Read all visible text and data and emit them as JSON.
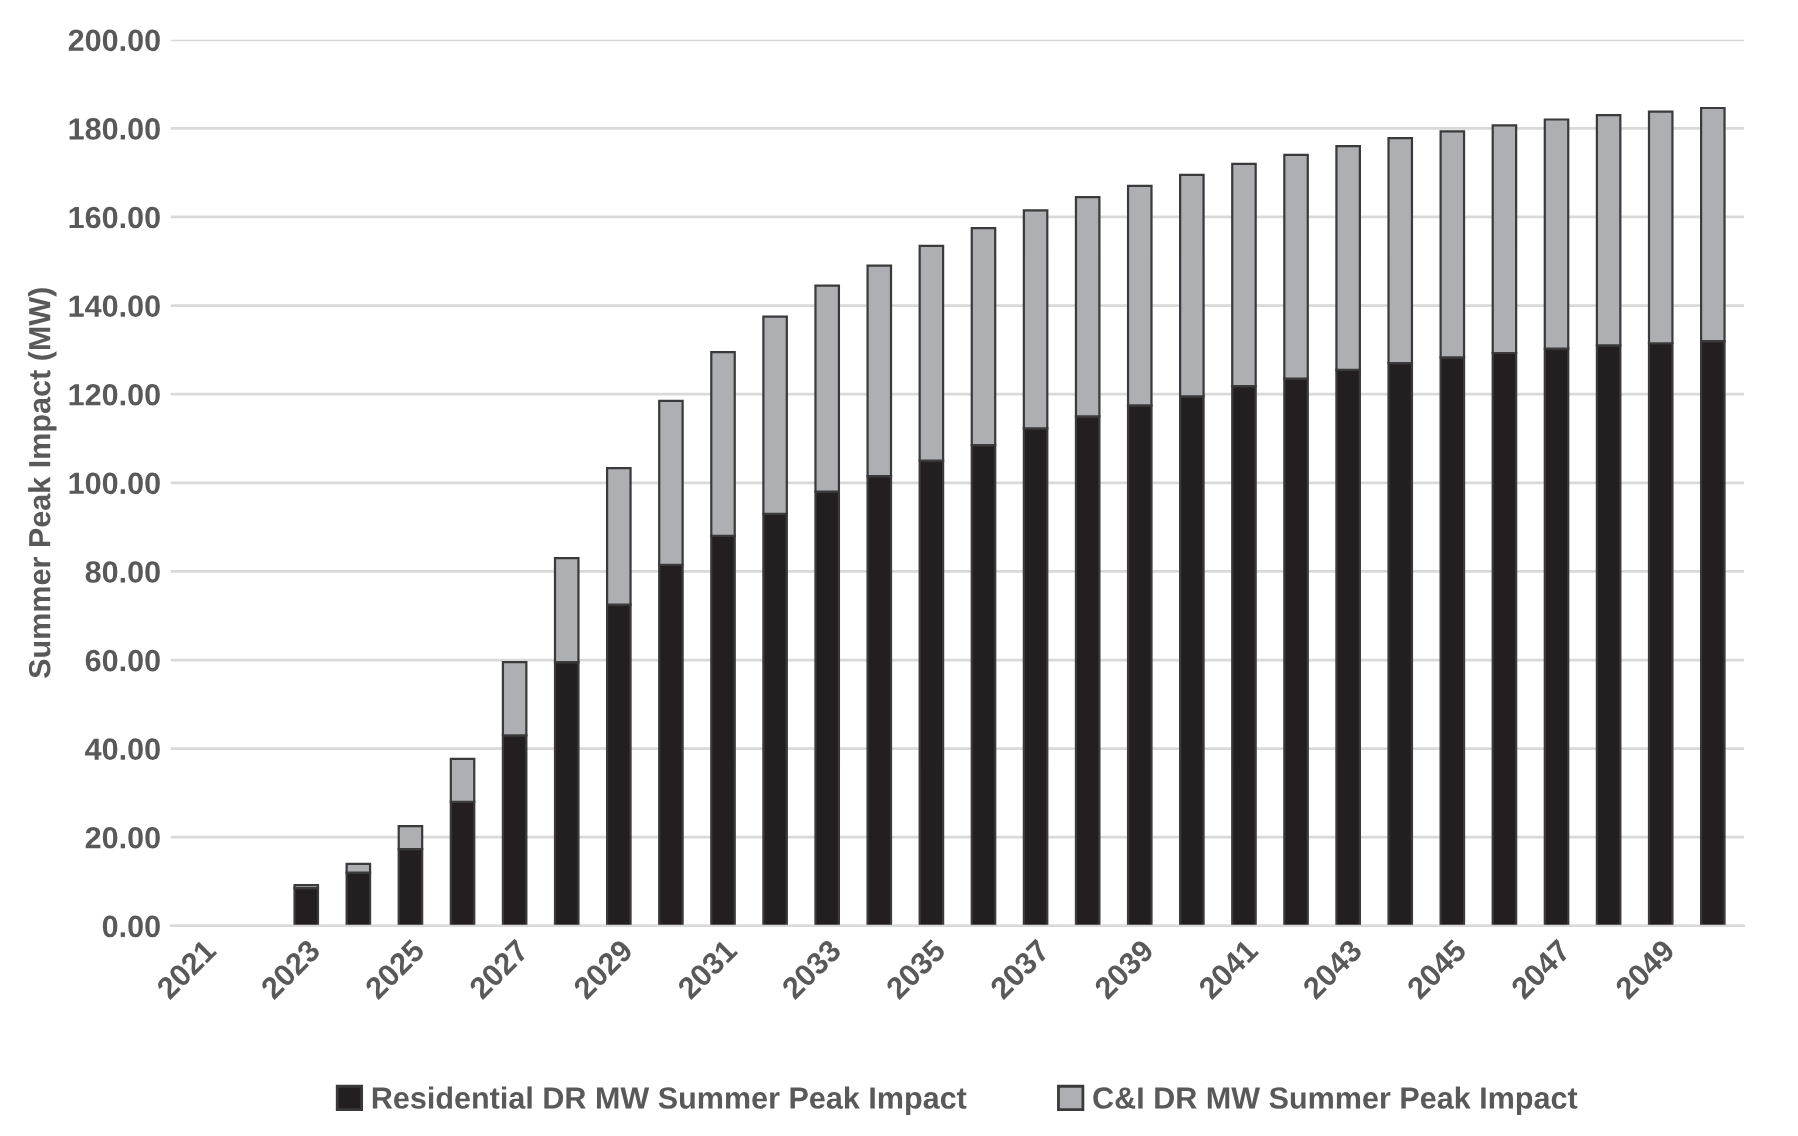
{
  "chart_data": {
    "type": "bar",
    "stacked": true,
    "ylabel": "Summer Peak Impact (MW)",
    "categories": [
      "2021",
      null,
      "2023",
      null,
      "2025",
      null,
      "2027",
      null,
      "2029",
      null,
      "2031",
      null,
      "2033",
      null,
      "2035",
      null,
      "2037",
      null,
      "2039",
      null,
      "2041",
      null,
      "2043",
      null,
      "2045",
      null,
      "2047",
      null,
      "2049",
      null
    ],
    "series": [
      {
        "name": "Residential DR MW Summer Peak Impact",
        "color": "#231f20",
        "values": [
          null,
          null,
          8.5,
          12,
          17.3,
          28,
          43,
          59.5,
          72.5,
          81.5,
          88,
          93,
          98,
          101.5,
          105,
          108.5,
          112.3,
          115,
          117.5,
          119.5,
          121.8,
          123.5,
          125.5,
          127,
          128.3,
          129.3,
          130.3,
          131,
          131.5,
          132
        ]
      },
      {
        "name": "C&I DR MW Summer Peak Impact",
        "color": "#adafb2",
        "values": [
          null,
          null,
          0.7,
          2.0,
          5.2,
          9.7,
          16.5,
          23.5,
          30.8,
          37.0,
          41.5,
          44.5,
          46.5,
          47.5,
          48.5,
          49.0,
          49.2,
          49.5,
          49.5,
          50.0,
          50.2,
          50.5,
          50.5,
          50.8,
          51.0,
          51.4,
          51.7,
          52.0,
          52.3,
          52.6
        ]
      }
    ],
    "ylim": [
      0,
      200
    ],
    "yticks": [
      {
        "value": 0,
        "label": "0.00"
      },
      {
        "value": 20,
        "label": "20.00"
      },
      {
        "value": 40,
        "label": "40.00"
      },
      {
        "value": 60,
        "label": "60.00"
      },
      {
        "value": 80,
        "label": "80.00"
      },
      {
        "value": 100,
        "label": "100.00"
      },
      {
        "value": 120,
        "label": "120.00"
      },
      {
        "value": 140,
        "label": "140.00"
      },
      {
        "value": 160,
        "label": "160.00"
      },
      {
        "value": 180,
        "label": "180.00"
      },
      {
        "value": 200,
        "label": "200.00"
      }
    ],
    "grid": "y",
    "legend": "bottom"
  }
}
